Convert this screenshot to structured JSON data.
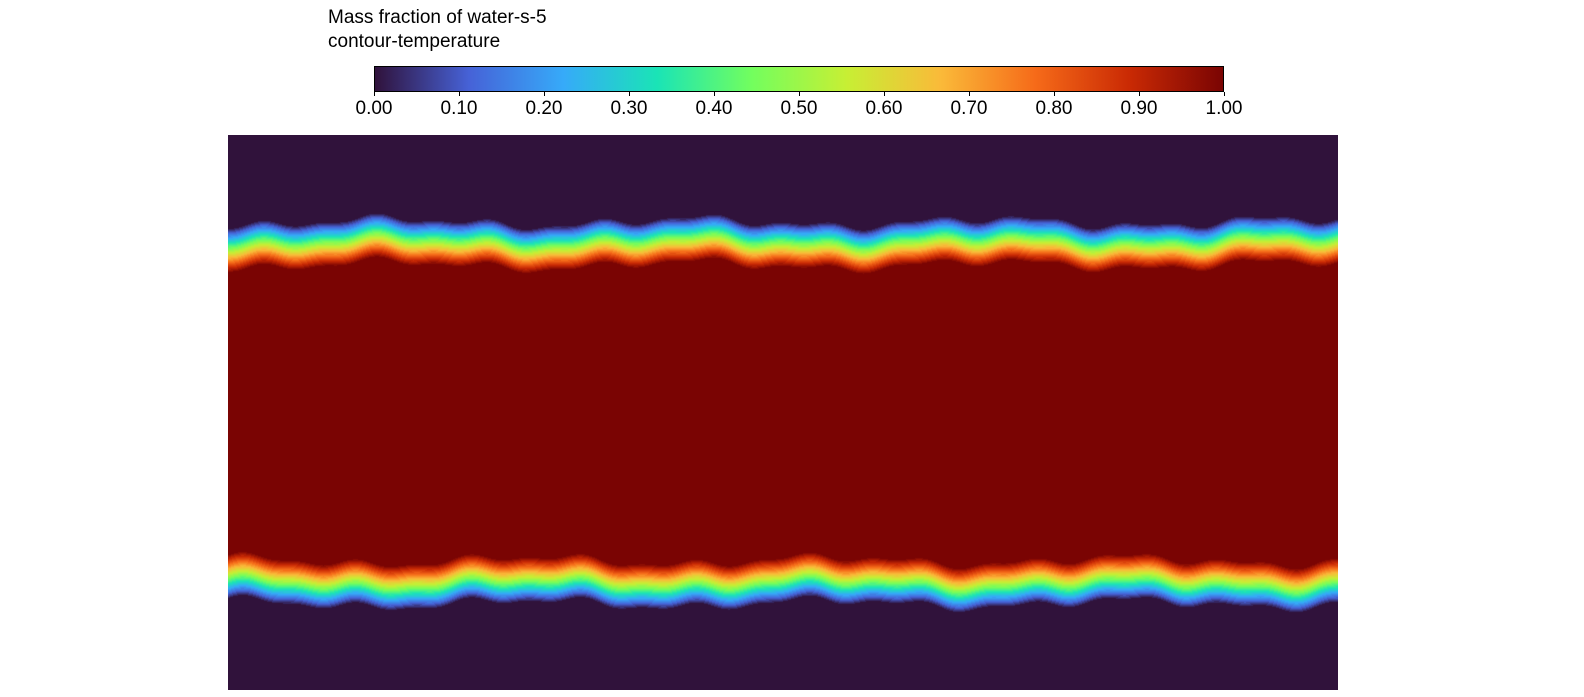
{
  "chart_data": {
    "type": "heatmap",
    "title": "Mass fraction of water-s-5",
    "subtitle": "contour-temperature",
    "colorbar": {
      "range": [
        0.0,
        1.0
      ],
      "ticks": [
        "0.00",
        "0.10",
        "0.20",
        "0.30",
        "0.40",
        "0.50",
        "0.60",
        "0.70",
        "0.80",
        "0.90",
        "1.00"
      ],
      "colormap": "turbo",
      "colors": [
        "#30123b",
        "#4662d7",
        "#36aaf9",
        "#1ae4b6",
        "#72fe5e",
        "#c7ef34",
        "#faba39",
        "#f66b19",
        "#ca2a04",
        "#7a0403"
      ],
      "low_color": "#30123b",
      "high_color": "#7a0403"
    },
    "field": {
      "description_values": {
        "outside_band_value": 0.0,
        "inside_band_value": 1.0
      },
      "band_top_interface_fraction": 0.195,
      "band_bottom_interface_fraction": 0.805
    }
  }
}
